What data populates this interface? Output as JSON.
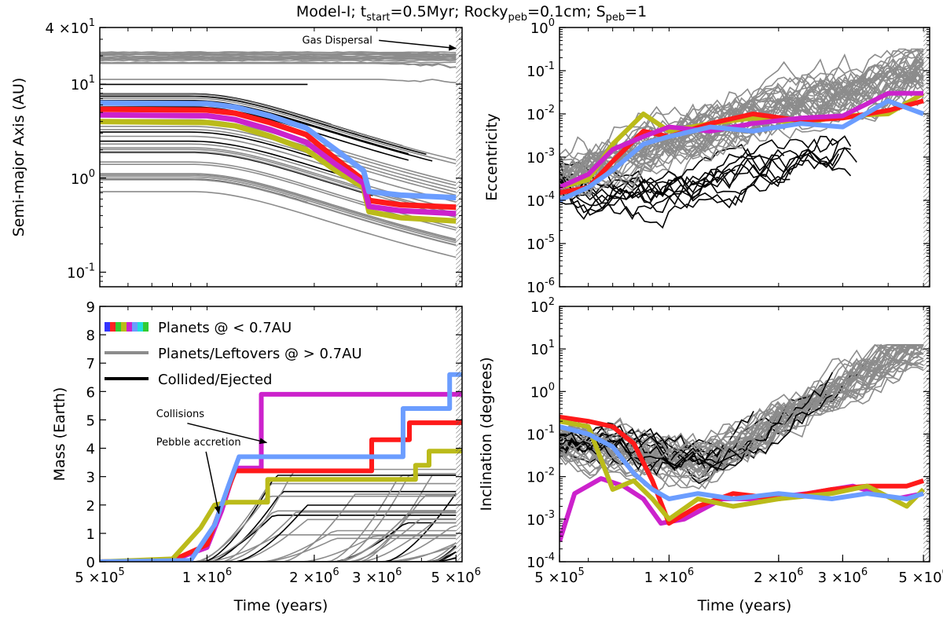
{
  "title": {
    "segments": [
      {
        "t": "Model-I; t",
        "sub": false
      },
      {
        "t": "start",
        "sub": true
      },
      {
        "t": "=0.5Myr; Rocky",
        "sub": false
      },
      {
        "t": "peb",
        "sub": true
      },
      {
        "t": "=0.1cm; S",
        "sub": false
      },
      {
        "t": "peb",
        "sub": true
      },
      {
        "t": "=1",
        "sub": false
      }
    ]
  },
  "colors": {
    "gray": "#8c8c8c",
    "black": "#000000",
    "planets": [
      "#ff1a1a",
      "#bbbb1a",
      "#cc22cc",
      "#6b9dff"
    ]
  },
  "chart_data": [
    {
      "id": "semimajor",
      "type": "line",
      "title": "",
      "xlabel": "",
      "ylabel": "Semi-major Axis (AU)",
      "xscale": "log",
      "yscale": "log",
      "xlim": [
        500000,
        5200000
      ],
      "ylim": [
        0.07,
        40
      ],
      "xticks": [],
      "yticks": [
        {
          "v": 0.1,
          "m": "10",
          "e": "-1"
        },
        {
          "v": 1,
          "m": "10",
          "e": "0"
        },
        {
          "v": 10,
          "m": "10",
          "e": "1"
        },
        {
          "v": 40,
          "m": "4 ×10",
          "e": "1"
        }
      ],
      "annotations": [
        {
          "text": "Gas Dispersal",
          "at": [
            1850000,
            27
          ],
          "arrow_to": [
            5000000,
            24
          ]
        }
      ],
      "gas_dispersal_band": [
        5000000,
        5200000
      ],
      "series": [
        {
          "name": "planet-red",
          "color_idx": 0,
          "width": 7,
          "x": [
            500000,
            1000000,
            1200000,
            1500000,
            1900000,
            2300000,
            2750000,
            2850000,
            3500000,
            5000000
          ],
          "y": [
            5.4,
            5.3,
            4.9,
            3.9,
            2.9,
            1.6,
            0.95,
            0.58,
            0.52,
            0.49
          ]
        },
        {
          "name": "planet-yellow",
          "color_idx": 1,
          "width": 7,
          "x": [
            500000,
            1000000,
            1200000,
            1500000,
            1900000,
            2300000,
            2750000,
            2850000,
            3500000,
            5000000
          ],
          "y": [
            4.0,
            3.9,
            3.6,
            2.8,
            2.0,
            1.2,
            0.8,
            0.44,
            0.38,
            0.35
          ]
        },
        {
          "name": "planet-magenta",
          "color_idx": 2,
          "width": 7,
          "x": [
            500000,
            1000000,
            1200000,
            1500000,
            1900000,
            2300000,
            2750000,
            2850000,
            3500000,
            5000000
          ],
          "y": [
            4.7,
            4.6,
            4.2,
            3.3,
            2.4,
            1.4,
            0.88,
            0.5,
            0.45,
            0.42
          ]
        },
        {
          "name": "planet-blue",
          "color_idx": 3,
          "width": 7,
          "x": [
            500000,
            1000000,
            1200000,
            1500000,
            1900000,
            2300000,
            2750000,
            2850000,
            3500000,
            5000000
          ],
          "y": [
            6.3,
            6.2,
            5.7,
            4.6,
            3.4,
            2.0,
            1.2,
            0.72,
            0.66,
            0.62
          ]
        }
      ]
    },
    {
      "id": "eccentricity",
      "type": "line",
      "title": "",
      "xlabel": "",
      "ylabel": "Eccentricity",
      "xscale": "log",
      "yscale": "log",
      "xlim": [
        500000,
        5200000
      ],
      "ylim": [
        1e-06,
        1
      ],
      "xticks": [],
      "yticks": [
        {
          "v": 1e-06,
          "m": "10",
          "e": "-6"
        },
        {
          "v": 1e-05,
          "m": "10",
          "e": "-5"
        },
        {
          "v": 0.0001,
          "m": "10",
          "e": "-4"
        },
        {
          "v": 0.001,
          "m": "10",
          "e": "-3"
        },
        {
          "v": 0.01,
          "m": "10",
          "e": "-2"
        },
        {
          "v": 0.1,
          "m": "10",
          "e": "-1"
        },
        {
          "v": 1,
          "m": "10",
          "e": "0"
        }
      ],
      "gas_dispersal_band": [
        5000000,
        5200000
      ],
      "series": [
        {
          "name": "planet-yellow",
          "color_idx": 1,
          "width": 6,
          "x": [
            500000,
            600000,
            700000,
            850000,
            1000000,
            1300000,
            1700000,
            2300000,
            3000000,
            4000000,
            5000000
          ],
          "y": [
            0.0002,
            0.0003,
            0.002,
            0.01,
            0.004,
            0.006,
            0.008,
            0.006,
            0.009,
            0.01,
            0.03
          ]
        },
        {
          "name": "planet-red",
          "color_idx": 0,
          "width": 6,
          "x": [
            500000,
            600000,
            700000,
            850000,
            1000000,
            1300000,
            1700000,
            2300000,
            3000000,
            4000000,
            5000000
          ],
          "y": [
            0.00015,
            0.0002,
            0.0008,
            0.004,
            0.003,
            0.006,
            0.01,
            0.007,
            0.008,
            0.012,
            0.02
          ]
        },
        {
          "name": "planet-magenta",
          "color_idx": 2,
          "width": 6,
          "x": [
            500000,
            600000,
            700000,
            850000,
            1000000,
            1300000,
            1700000,
            2300000,
            3000000,
            4000000,
            5000000
          ],
          "y": [
            0.0002,
            0.0004,
            0.0015,
            0.003,
            0.005,
            0.004,
            0.006,
            0.008,
            0.009,
            0.03,
            0.03
          ]
        },
        {
          "name": "planet-blue",
          "color_idx": 3,
          "width": 6,
          "x": [
            500000,
            600000,
            700000,
            850000,
            1000000,
            1300000,
            1700000,
            2300000,
            3000000,
            4000000,
            5000000
          ],
          "y": [
            0.0001,
            0.0002,
            0.0005,
            0.002,
            0.003,
            0.005,
            0.004,
            0.006,
            0.005,
            0.02,
            0.01
          ]
        }
      ]
    },
    {
      "id": "mass",
      "type": "line",
      "title": "",
      "xlabel": "Time (years)",
      "ylabel": "Mass (Earth)",
      "xscale": "log",
      "yscale": "linear",
      "xlim": [
        500000,
        5200000
      ],
      "ylim": [
        0,
        9
      ],
      "xticks": [
        {
          "v": 500000,
          "m": "5 ×10",
          "e": "5"
        },
        {
          "v": 1000000,
          "m": "1 ×10",
          "e": "6"
        },
        {
          "v": 2000000,
          "m": "2 ×10",
          "e": "6"
        },
        {
          "v": 3000000,
          "m": "3 ×10",
          "e": "6"
        },
        {
          "v": 5000000,
          "m": "5 ×10",
          "e": "6"
        }
      ],
      "yticks": [
        {
          "v": 0,
          "m": "0",
          "e": ""
        },
        {
          "v": 1,
          "m": "1",
          "e": ""
        },
        {
          "v": 2,
          "m": "2",
          "e": ""
        },
        {
          "v": 3,
          "m": "3",
          "e": ""
        },
        {
          "v": 4,
          "m": "4",
          "e": ""
        },
        {
          "v": 5,
          "m": "5",
          "e": ""
        },
        {
          "v": 6,
          "m": "6",
          "e": ""
        },
        {
          "v": 7,
          "m": "7",
          "e": ""
        },
        {
          "v": 8,
          "m": "8",
          "e": ""
        },
        {
          "v": 9,
          "m": "9",
          "e": ""
        }
      ],
      "legend": {
        "position": "top-left",
        "entries": [
          {
            "label": "Planets @ < 0.7AU",
            "style": "rainbow"
          },
          {
            "label": "Planets/Leftovers @ > 0.7AU",
            "style": "gray"
          },
          {
            "label": "Collided/Ejected",
            "style": "black"
          }
        ]
      },
      "annotations": [
        {
          "text": "Collisions",
          "at": [
            720000,
            5.1
          ],
          "arrow_to": [
            1470000,
            4.2
          ]
        },
        {
          "text": "Pebble accretion",
          "at": [
            720000,
            4.1
          ],
          "arrow_to": [
            1080000,
            1.7
          ]
        }
      ],
      "gas_dispersal_band": [
        5000000,
        5200000
      ],
      "series": [
        {
          "name": "planet-magenta",
          "color_idx": 2,
          "width": 6,
          "x": [
            500000,
            800000,
            1000000,
            1100000,
            1200000,
            1420000,
            1420000,
            5200000
          ],
          "y": [
            0,
            0.05,
            0.5,
            1.8,
            3.3,
            3.3,
            5.9,
            5.9
          ]
        },
        {
          "name": "planet-red",
          "color_idx": 0,
          "width": 6,
          "x": [
            500000,
            800000,
            1000000,
            1100000,
            1200000,
            2900000,
            2900000,
            3700000,
            3700000,
            5200000
          ],
          "y": [
            0,
            0.05,
            0.6,
            2.0,
            3.2,
            3.2,
            4.3,
            4.3,
            4.9,
            4.9
          ]
        },
        {
          "name": "planet-yellow",
          "color_idx": 1,
          "width": 6,
          "x": [
            500000,
            800000,
            960000,
            1050000,
            1150000,
            1150000,
            1480000,
            1480000,
            3850000,
            3850000,
            4200000,
            4200000,
            5200000
          ],
          "y": [
            0,
            0.1,
            1.2,
            2.0,
            2.1,
            2.1,
            2.1,
            2.9,
            2.9,
            3.4,
            3.4,
            3.9,
            3.9
          ]
        },
        {
          "name": "planet-blue",
          "color_idx": 3,
          "width": 6,
          "x": [
            500000,
            900000,
            1050000,
            1150000,
            1230000,
            1230000,
            3550000,
            3550000,
            4800000,
            4800000,
            5200000
          ],
          "y": [
            0,
            0.05,
            1.3,
            2.7,
            3.7,
            3.7,
            3.7,
            5.4,
            5.4,
            6.6,
            6.6
          ]
        }
      ]
    },
    {
      "id": "inclination",
      "type": "line",
      "title": "",
      "xlabel": "Time (years)",
      "ylabel": "Inclination (degrees)",
      "xscale": "log",
      "yscale": "log",
      "xlim": [
        500000,
        5200000
      ],
      "ylim": [
        0.0001,
        100
      ],
      "xticks": [
        {
          "v": 500000,
          "m": "5 ×10",
          "e": "5"
        },
        {
          "v": 1000000,
          "m": "1 ×10",
          "e": "6"
        },
        {
          "v": 2000000,
          "m": "2 ×10",
          "e": "6"
        },
        {
          "v": 3000000,
          "m": "3 ×10",
          "e": "6"
        },
        {
          "v": 5000000,
          "m": "5 ×10",
          "e": "6"
        }
      ],
      "yticks": [
        {
          "v": 0.0001,
          "m": "10",
          "e": "-4"
        },
        {
          "v": 0.001,
          "m": "10",
          "e": "-3"
        },
        {
          "v": 0.01,
          "m": "10",
          "e": "-2"
        },
        {
          "v": 0.1,
          "m": "10",
          "e": "-1"
        },
        {
          "v": 1,
          "m": "10",
          "e": "0"
        },
        {
          "v": 10,
          "m": "10",
          "e": "1"
        },
        {
          "v": 100,
          "m": "10",
          "e": "2"
        }
      ],
      "gas_dispersal_band": [
        5000000,
        5200000
      ],
      "series": [
        {
          "name": "planet-magenta",
          "color_idx": 2,
          "width": 6,
          "x": [
            500000,
            550000,
            650000,
            750000,
            850000,
            950000,
            1100000,
            1400000,
            1800000,
            2400000,
            3200000,
            4200000,
            5000000
          ],
          "y": [
            0.0003,
            0.004,
            0.009,
            0.006,
            0.003,
            0.0008,
            0.001,
            0.003,
            0.003,
            0.004,
            0.006,
            0.003,
            0.004
          ]
        },
        {
          "name": "planet-red",
          "color_idx": 0,
          "width": 6,
          "x": [
            500000,
            600000,
            700000,
            800000,
            900000,
            1000000,
            1200000,
            1500000,
            2000000,
            2800000,
            3500000,
            4500000,
            5000000
          ],
          "y": [
            0.25,
            0.2,
            0.15,
            0.06,
            0.008,
            0.0008,
            0.002,
            0.004,
            0.003,
            0.005,
            0.006,
            0.006,
            0.008
          ]
        },
        {
          "name": "planet-yellow",
          "color_idx": 1,
          "width": 6,
          "x": [
            500000,
            600000,
            700000,
            800000,
            900000,
            1000000,
            1200000,
            1500000,
            2000000,
            2800000,
            3500000,
            4500000,
            5000000
          ],
          "y": [
            0.2,
            0.15,
            0.005,
            0.008,
            0.003,
            0.001,
            0.003,
            0.002,
            0.003,
            0.004,
            0.006,
            0.002,
            0.005
          ]
        },
        {
          "name": "planet-blue",
          "color_idx": 3,
          "width": 6,
          "x": [
            500000,
            600000,
            700000,
            800000,
            900000,
            1000000,
            1200000,
            1500000,
            2000000,
            2800000,
            3500000,
            4500000,
            5000000
          ],
          "y": [
            0.15,
            0.1,
            0.05,
            0.012,
            0.005,
            0.003,
            0.004,
            0.003,
            0.004,
            0.003,
            0.004,
            0.003,
            0.004
          ]
        }
      ]
    }
  ]
}
